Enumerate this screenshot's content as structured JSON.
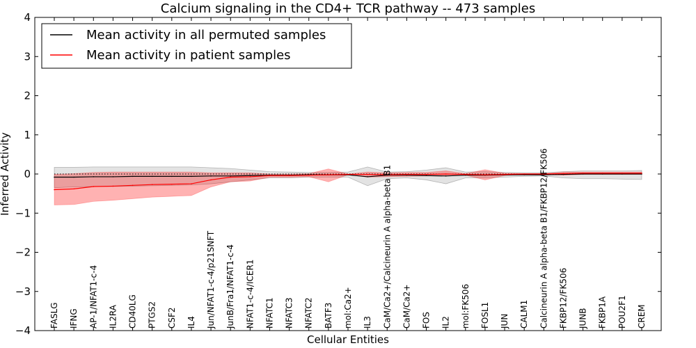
{
  "chart_data": {
    "type": "line",
    "title": "Calcium signaling in the CD4+ TCR pathway -- 473 samples",
    "xlabel": "Cellular Entities",
    "ylabel": "Inferred Activity",
    "ylim": [
      -4,
      4
    ],
    "yticks": [
      -4,
      -3,
      -2,
      -1,
      0,
      1,
      2,
      3,
      4
    ],
    "ytick_labels": [
      "−4",
      "−3",
      "−2",
      "−1",
      "0",
      "1",
      "2",
      "3",
      "4"
    ],
    "legend_position": "top-left",
    "categories": [
      "FASLG",
      "IFNG",
      "AP-1/NFAT1-c-4",
      "IL2RA",
      "CD40LG",
      "PTGS2",
      "CSF2",
      "IL4",
      "Jun/NFAT1-c-4/p21SNFT",
      "JunB/Fra1/NFAT1-c-4",
      "NFAT1-c-4/ICER1",
      "NFATC1",
      "NFATC3",
      "NFATC2",
      "BATF3",
      "mol:Ca2+",
      "IL3",
      "CaM/Ca2+/Calcineurin A alpha-beta B1",
      "CaM/Ca2+",
      "FOS",
      "IL2",
      "mol:FK506",
      "FOSL1",
      "JUN",
      "CALM1",
      "Calcineurin A alpha-beta B1/FKBP12/FK506",
      "FKBP12/FK506",
      "JUNB",
      "FKBP1A",
      "POU2F1",
      "CREM"
    ],
    "series": [
      {
        "name": "Mean activity in all permuted samples",
        "color": "#000000",
        "values": [
          -0.08,
          -0.08,
          -0.07,
          -0.07,
          -0.06,
          -0.06,
          -0.06,
          -0.06,
          -0.05,
          -0.05,
          -0.04,
          -0.03,
          -0.03,
          -0.02,
          -0.02,
          -0.02,
          -0.07,
          -0.03,
          -0.03,
          -0.04,
          -0.05,
          -0.03,
          -0.03,
          -0.02,
          -0.02,
          -0.02,
          -0.01,
          0.0,
          0.0,
          0.0,
          0.0
        ],
        "band_lower": [
          -0.35,
          -0.33,
          -0.32,
          -0.32,
          -0.31,
          -0.3,
          -0.29,
          -0.28,
          -0.25,
          -0.2,
          -0.15,
          -0.1,
          -0.1,
          -0.08,
          -0.08,
          -0.08,
          -0.3,
          -0.12,
          -0.1,
          -0.15,
          -0.25,
          -0.1,
          -0.1,
          -0.08,
          -0.06,
          -0.05,
          -0.1,
          -0.12,
          -0.12,
          -0.13,
          -0.14
        ],
        "band_upper": [
          0.17,
          0.17,
          0.18,
          0.18,
          0.18,
          0.18,
          0.18,
          0.18,
          0.16,
          0.14,
          0.1,
          0.06,
          0.05,
          0.04,
          0.04,
          0.05,
          0.18,
          0.05,
          0.06,
          0.1,
          0.16,
          0.05,
          0.06,
          0.04,
          0.03,
          0.03,
          0.06,
          0.08,
          0.08,
          0.08,
          0.09
        ]
      },
      {
        "name": "Mean activity in patient samples",
        "color": "#ff0000",
        "values": [
          -0.4,
          -0.38,
          -0.32,
          -0.31,
          -0.29,
          -0.27,
          -0.26,
          -0.25,
          -0.15,
          -0.08,
          -0.07,
          -0.04,
          -0.04,
          -0.03,
          -0.02,
          -0.01,
          -0.01,
          -0.02,
          -0.01,
          -0.01,
          0.0,
          -0.01,
          -0.02,
          -0.01,
          0.0,
          0.0,
          0.01,
          0.02,
          0.02,
          0.02,
          0.02
        ],
        "band_lower": [
          -0.79,
          -0.78,
          -0.7,
          -0.67,
          -0.63,
          -0.59,
          -0.57,
          -0.55,
          -0.33,
          -0.2,
          -0.18,
          -0.08,
          -0.08,
          -0.07,
          -0.2,
          -0.02,
          -0.08,
          -0.07,
          -0.06,
          -0.05,
          -0.05,
          -0.03,
          -0.15,
          -0.04,
          -0.01,
          -0.01,
          -0.03,
          -0.01,
          -0.01,
          -0.01,
          -0.01
        ],
        "band_upper": [
          -0.01,
          0.01,
          0.04,
          0.05,
          0.05,
          0.05,
          0.05,
          0.05,
          0.03,
          0.03,
          0.03,
          0.0,
          0.0,
          0.01,
          0.13,
          0.0,
          0.05,
          0.03,
          0.04,
          0.04,
          0.08,
          0.01,
          0.11,
          0.02,
          0.01,
          0.01,
          0.05,
          0.05,
          0.05,
          0.05,
          0.05
        ]
      }
    ],
    "reference_line": {
      "y": 0,
      "style": "dotted"
    }
  }
}
